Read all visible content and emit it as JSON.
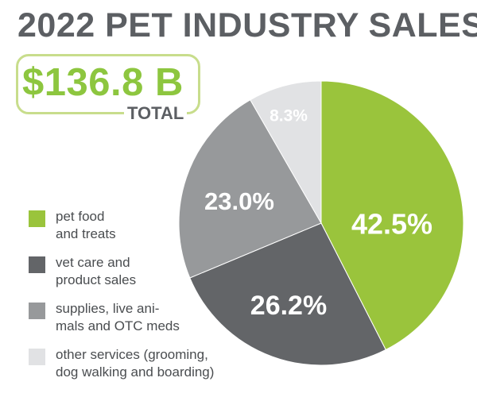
{
  "header": {
    "title": "2022 PET INDUSTRY SALES"
  },
  "total": {
    "value": "$136.8 B",
    "label": "TOTAL"
  },
  "chart_data": {
    "type": "pie",
    "title": "2022 PET INDUSTRY SALES",
    "start": "12 o'clock, clockwise",
    "slices": [
      {
        "label": "pet food\nand treats",
        "value": 42.5,
        "display": "42.5%",
        "color": "#9ac43c"
      },
      {
        "label": "vet care and\nproduct sales",
        "value": 26.2,
        "display": "26.2%",
        "color": "#636568"
      },
      {
        "label": "supplies, live ani-\nmals and OTC meds",
        "value": 23.0,
        "display": "23.0%",
        "color": "#97999b"
      },
      {
        "label": "other services (grooming,\ndog walking and boarding)",
        "value": 8.3,
        "display": "8.3%",
        "color": "#e1e2e4"
      }
    ]
  }
}
